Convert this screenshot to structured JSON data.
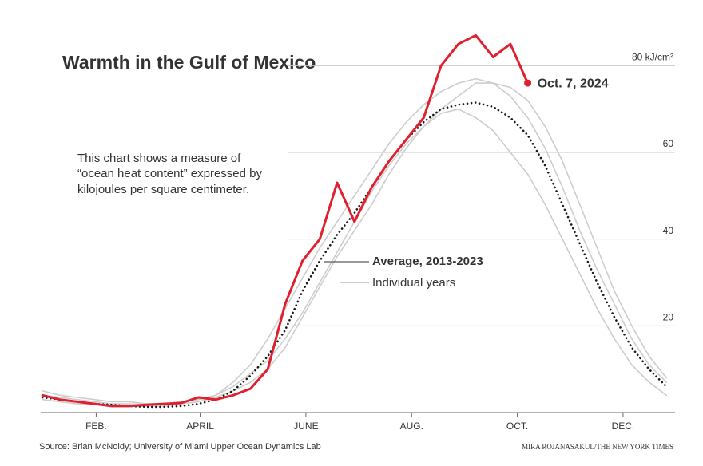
{
  "chart_data": {
    "type": "line",
    "title": "Warmth in the Gulf of Mexico",
    "description": [
      "This chart shows a measure of",
      "“ocean heat content” expressed by",
      "kilojoules per square centimeter."
    ],
    "x": [
      1,
      11,
      21,
      31,
      41,
      51,
      61,
      71,
      81,
      91,
      101,
      111,
      121,
      131,
      141,
      151,
      161,
      171,
      181,
      191,
      201,
      211,
      221,
      231,
      241,
      251,
      261,
      271,
      281,
      291,
      301,
      311,
      321,
      331,
      341,
      351,
      361
    ],
    "xlim": [
      0,
      366
    ],
    "xticks": [
      {
        "value": 32,
        "label": "FEB."
      },
      {
        "value": 92,
        "label": "APRIL"
      },
      {
        "value": 153,
        "label": "JUNE"
      },
      {
        "value": 214,
        "label": "AUG."
      },
      {
        "value": 275,
        "label": "OCT."
      },
      {
        "value": 336,
        "label": "DEC."
      }
    ],
    "ylim": [
      0,
      90
    ],
    "yticks": [
      20,
      40,
      60,
      {
        "value": 80,
        "label": "80 kJ/cm²"
      }
    ],
    "grid": true,
    "series": [
      {
        "color": "#cdcdcd",
        "values": [
          4,
          3.5,
          3,
          2.5,
          2,
          2,
          1.8,
          2,
          2.5,
          3,
          4,
          7,
          11,
          17,
          24,
          31,
          38,
          44,
          50,
          56,
          62,
          67,
          71,
          74,
          76,
          77,
          76,
          73,
          68,
          61,
          52,
          42,
          33,
          25,
          17,
          11,
          7
        ]
      },
      {
        "color": "#cdcdcd",
        "values": [
          3,
          2.5,
          2,
          2,
          1.5,
          1.5,
          1.5,
          1.5,
          2,
          2.5,
          3.5,
          5,
          7,
          10,
          15,
          22,
          29,
          36,
          42,
          48,
          55,
          61,
          66,
          69,
          70,
          68,
          65,
          60,
          55,
          48,
          40,
          32,
          24,
          17,
          11,
          7,
          4
        ]
      },
      {
        "color": "#cdcdcd",
        "values": [
          5,
          4,
          3.5,
          3,
          2.5,
          2.5,
          2,
          2,
          2.5,
          3,
          4,
          6,
          9,
          12,
          17,
          23,
          30,
          37,
          44,
          51,
          57,
          62,
          66,
          70,
          73,
          76,
          76,
          75,
          72,
          66,
          58,
          48,
          38,
          28,
          20,
          13,
          8
        ]
      },
      {
        "name": "Average, 2013-2023",
        "color": "#1a1a1a",
        "style": "dotted",
        "values": [
          3.5,
          3,
          2.5,
          2,
          1.8,
          1.5,
          1.3,
          1.3,
          1.5,
          2,
          3,
          5,
          8.5,
          13,
          19,
          28,
          35,
          41,
          46,
          52,
          58,
          63,
          67,
          70,
          71,
          71.5,
          70.5,
          68,
          64,
          57,
          48,
          39,
          30,
          22,
          15,
          10,
          6
        ]
      },
      {
        "name": "Oct. 7, 2024",
        "color": "#e0202e",
        "values": [
          4,
          3,
          2.5,
          2,
          1.5,
          1.5,
          1.8,
          2,
          2.2,
          3.5,
          3,
          4,
          5.5,
          10,
          25,
          35,
          40,
          53,
          44,
          52,
          58,
          63,
          68,
          80,
          85,
          87,
          82,
          85,
          76,
          null,
          null,
          null,
          null,
          null,
          null,
          null,
          null
        ]
      }
    ],
    "annotations": [
      {
        "text": "Individual years"
      }
    ],
    "source": "Source: Brian McNoldy; University of Miami Upper Ocean Dynamics Lab",
    "credit": "MIRA ROJANASAKUL/THE NEW YORK TIMES"
  }
}
